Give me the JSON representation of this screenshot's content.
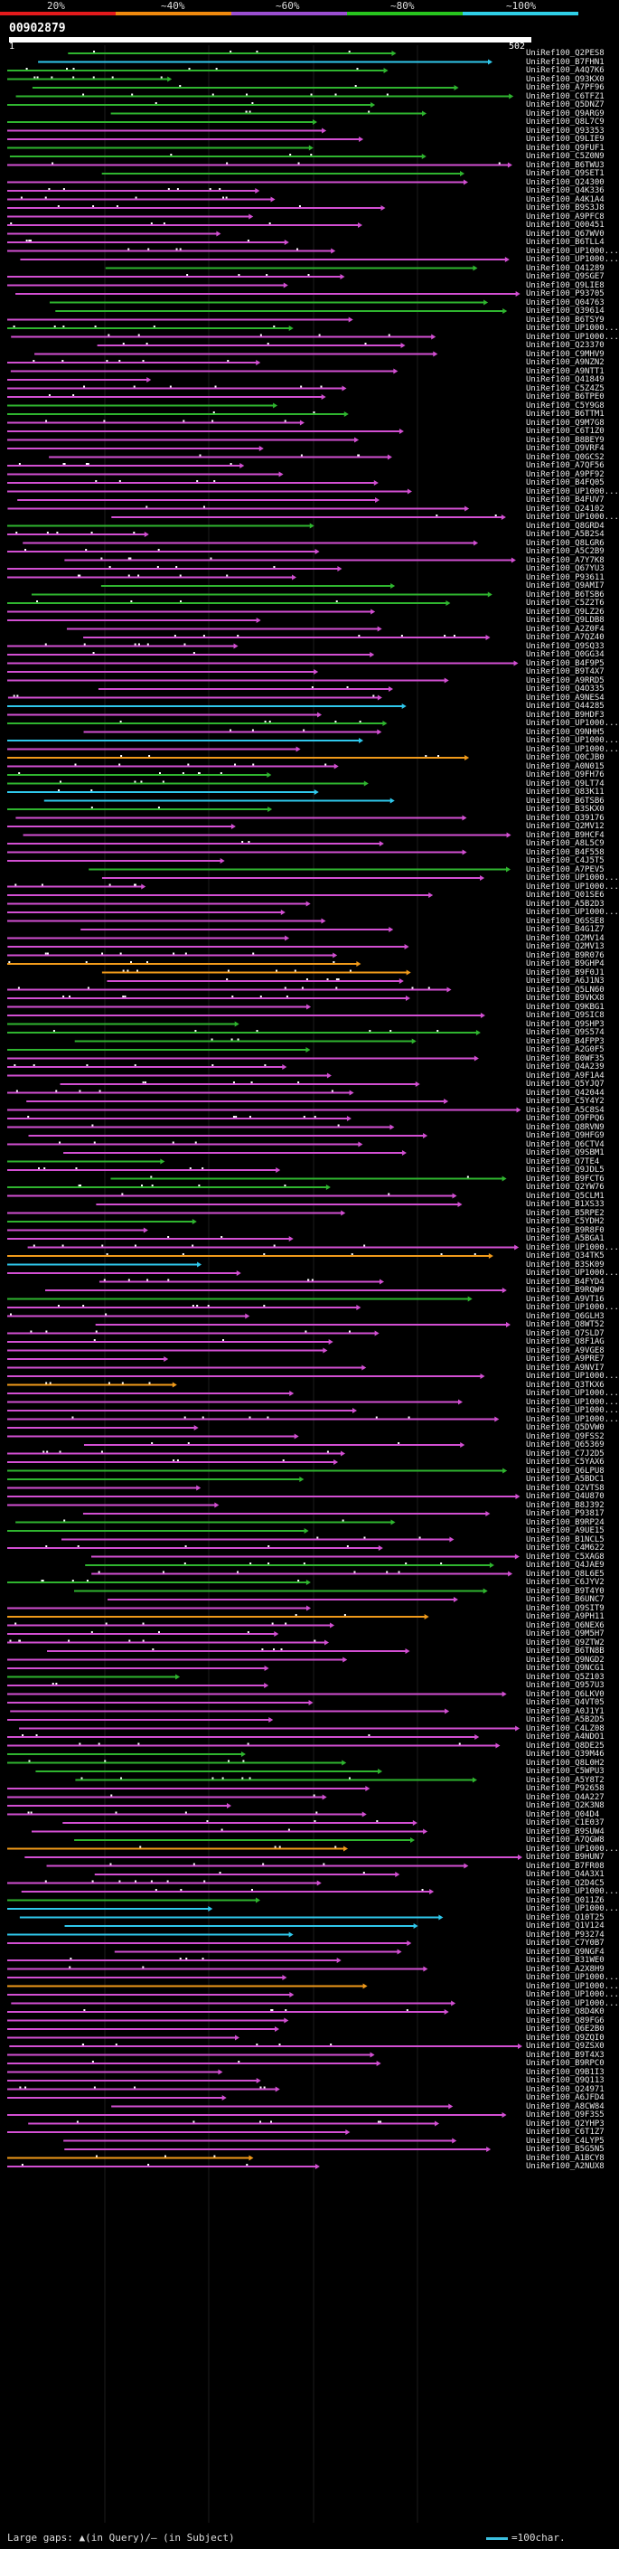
{
  "scale": {
    "labels": [
      "20%",
      "~40%",
      "~60%",
      "~80%",
      "~100%"
    ],
    "colors": [
      "#e41a1c",
      "#f08a0e",
      "#9b4fd1",
      "#28c51e",
      "#2fd0e8"
    ]
  },
  "query": {
    "id": "00902879",
    "start": "1",
    "end": "502"
  },
  "palette": {
    "magenta": "#d24fd2",
    "green": "#2fb52f",
    "orange": "#f09a1a",
    "cyan": "#2fc8ec",
    "gray": "#555555"
  },
  "hits": [
    {
      "id": "UniRef100_Q2PES8",
      "c": "g"
    },
    {
      "id": "UniRef100_B7FHN1",
      "c": "c"
    },
    {
      "id": "UniRef100_A4Q7K6",
      "c": "g"
    },
    {
      "id": "UniRef100_Q93KX0",
      "c": "g"
    },
    {
      "id": "UniRef100_A7PF96",
      "c": "g"
    },
    {
      "id": "UniRef100_C6TFZ1",
      "c": "g"
    },
    {
      "id": "UniRef100_Q5DNZ7",
      "c": "g"
    },
    {
      "id": "UniRef100_Q9ARG9",
      "c": "g"
    },
    {
      "id": "UniRef100_Q8L7C9",
      "c": "g"
    },
    {
      "id": "UniRef100_Q93353",
      "c": "m"
    },
    {
      "id": "UniRef100_Q9LIE9",
      "c": "m"
    },
    {
      "id": "UniRef100_Q9FUF1",
      "c": "g"
    },
    {
      "id": "UniRef100_C5Z0N9",
      "c": "g"
    },
    {
      "id": "UniRef100_B6TWU3",
      "c": "m"
    },
    {
      "id": "UniRef100_Q9SET1",
      "c": "g"
    },
    {
      "id": "UniRef100_Q24300",
      "c": "m"
    },
    {
      "id": "UniRef100_Q4K336",
      "c": "m"
    },
    {
      "id": "UniRef100_A4K1A4",
      "c": "m"
    },
    {
      "id": "UniRef100_B9S3J8",
      "c": "m"
    },
    {
      "id": "UniRef100_A9PFC8",
      "c": "m"
    },
    {
      "id": "UniRef100_Q00451",
      "c": "m"
    },
    {
      "id": "UniRef100_Q67WV0",
      "c": "m"
    },
    {
      "id": "UniRef100_B6TLL4",
      "c": "m"
    },
    {
      "id": "UniRef100_UP1000...",
      "c": "m"
    },
    {
      "id": "UniRef100_UP1000...",
      "c": "m"
    },
    {
      "id": "UniRef100_Q41289",
      "c": "g"
    },
    {
      "id": "UniRef100_Q9SGE7",
      "c": "m"
    },
    {
      "id": "UniRef100_Q9LIE8",
      "c": "m"
    },
    {
      "id": "UniRef100_P93705",
      "c": "m"
    },
    {
      "id": "UniRef100_Q04763",
      "c": "g"
    },
    {
      "id": "UniRef100_Q39614",
      "c": "g"
    },
    {
      "id": "UniRef100_B6TSY9",
      "c": "m"
    },
    {
      "id": "UniRef100_UP1000...",
      "c": "g"
    },
    {
      "id": "UniRef100_UP1000...",
      "c": "m"
    },
    {
      "id": "UniRef100_Q23370",
      "c": "m"
    },
    {
      "id": "UniRef100_C9MHV9",
      "c": "m"
    },
    {
      "id": "UniRef100_A9NZN2",
      "c": "m"
    },
    {
      "id": "UniRef100_A9NTT1",
      "c": "m"
    },
    {
      "id": "UniRef100_Q41849",
      "c": "m"
    },
    {
      "id": "UniRef100_C5Z4Z5",
      "c": "m"
    },
    {
      "id": "UniRef100_B6TPE0",
      "c": "m"
    },
    {
      "id": "UniRef100_C5Y9G8",
      "c": "g"
    },
    {
      "id": "UniRef100_B6TTM1",
      "c": "g"
    },
    {
      "id": "UniRef100_Q9M7G8",
      "c": "m"
    },
    {
      "id": "UniRef100_C6T1Z0",
      "c": "m"
    },
    {
      "id": "UniRef100_B8BEY9",
      "c": "m"
    },
    {
      "id": "UniRef100_Q9VRF4",
      "c": "m"
    },
    {
      "id": "UniRef100_Q0GCS2",
      "c": "m"
    },
    {
      "id": "UniRef100_A7QF56",
      "c": "m"
    },
    {
      "id": "UniRef100_A9PF92",
      "c": "m"
    },
    {
      "id": "UniRef100_B4FQ05",
      "c": "m"
    },
    {
      "id": "UniRef100_UP1000...",
      "c": "m"
    },
    {
      "id": "UniRef100_B4FUV7",
      "c": "m"
    },
    {
      "id": "UniRef100_Q24102",
      "c": "m"
    },
    {
      "id": "UniRef100_UP1000...",
      "c": "m"
    },
    {
      "id": "UniRef100_Q8GRD4",
      "c": "g"
    },
    {
      "id": "UniRef100_A5B2S4",
      "c": "m"
    },
    {
      "id": "UniRef100_Q8LGR6",
      "c": "m"
    },
    {
      "id": "UniRef100_A5C2B9",
      "c": "m"
    },
    {
      "id": "UniRef100_A7Y7K8",
      "c": "m"
    },
    {
      "id": "UniRef100_Q67YU3",
      "c": "m"
    },
    {
      "id": "UniRef100_P93611",
      "c": "m"
    },
    {
      "id": "UniRef100_Q9AMI7",
      "c": "g"
    },
    {
      "id": "UniRef100_B6TSB6",
      "c": "g"
    },
    {
      "id": "UniRef100_C5Z2T6",
      "c": "g"
    },
    {
      "id": "UniRef100_Q9LZ26",
      "c": "m"
    },
    {
      "id": "UniRef100_Q9LDB8",
      "c": "m"
    },
    {
      "id": "UniRef100_A2Z0F4",
      "c": "m"
    },
    {
      "id": "UniRef100_A7QZ40",
      "c": "m"
    },
    {
      "id": "UniRef100_Q9SQ33",
      "c": "m"
    },
    {
      "id": "UniRef100_Q0GG34",
      "c": "m"
    },
    {
      "id": "UniRef100_B4F9P5",
      "c": "m"
    },
    {
      "id": "UniRef100_B9T4X7",
      "c": "m"
    },
    {
      "id": "UniRef100_A9RRD5",
      "c": "m"
    },
    {
      "id": "UniRef100_Q4O335",
      "c": "m"
    },
    {
      "id": "UniRef100_A9NES4",
      "c": "m"
    },
    {
      "id": "UniRef100_Q44285",
      "c": "c"
    },
    {
      "id": "UniRef100_B9HDF3",
      "c": "m"
    },
    {
      "id": "UniRef100_UP1000...",
      "c": "g"
    },
    {
      "id": "UniRef100_Q9NHH5",
      "c": "m"
    },
    {
      "id": "UniRef100_UP1000...",
      "c": "c"
    },
    {
      "id": "UniRef100_UP1000...",
      "c": "m"
    },
    {
      "id": "UniRef100_Q0CJB0",
      "c": "o"
    },
    {
      "id": "UniRef100_A0N015",
      "c": "m"
    },
    {
      "id": "UniRef100_Q9FH76",
      "c": "g"
    },
    {
      "id": "UniRef100_Q9LT74",
      "c": "g"
    },
    {
      "id": "UniRef100_Q83K11",
      "c": "c"
    },
    {
      "id": "UniRef100_B6TSB6",
      "c": "c"
    },
    {
      "id": "UniRef100_B3SKX0",
      "c": "g"
    },
    {
      "id": "UniRef100_Q39176",
      "c": "m"
    },
    {
      "id": "UniRef100_Q2MV12",
      "c": "m"
    },
    {
      "id": "UniRef100_B9HCF4",
      "c": "m"
    },
    {
      "id": "UniRef100_A8L5C9",
      "c": "m"
    },
    {
      "id": "UniRef100_B4F558",
      "c": "m"
    },
    {
      "id": "UniRef100_C4J5T5",
      "c": "m"
    },
    {
      "id": "UniRef100_A7PEV5",
      "c": "g"
    },
    {
      "id": "UniRef100_UP1000...",
      "c": "m"
    },
    {
      "id": "UniRef100_UP1000...",
      "c": "m"
    },
    {
      "id": "UniRef100_Q01SE6",
      "c": "m"
    },
    {
      "id": "UniRef100_A5B2D3",
      "c": "m"
    },
    {
      "id": "UniRef100_UP1000...",
      "c": "m"
    },
    {
      "id": "UniRef100_Q6SSE8",
      "c": "m"
    },
    {
      "id": "UniRef100_B4G1Z7",
      "c": "m"
    },
    {
      "id": "UniRef100_Q2MV14",
      "c": "m"
    },
    {
      "id": "UniRef100_Q2MV13",
      "c": "m"
    },
    {
      "id": "UniRef100_B9R076",
      "c": "m"
    },
    {
      "id": "UniRef100_B9GHP4",
      "c": "o"
    },
    {
      "id": "UniRef100_B9F0J1",
      "c": "o"
    },
    {
      "id": "UniRef100_A6J1N3",
      "c": "m"
    },
    {
      "id": "UniRef100_Q5LN60",
      "c": "m"
    },
    {
      "id": "UniRef100_B9VKX8",
      "c": "m"
    },
    {
      "id": "UniRef100_Q9KBG1",
      "c": "m"
    },
    {
      "id": "UniRef100_Q9SIC8",
      "c": "m"
    },
    {
      "id": "UniRef100_Q9SHP3",
      "c": "g"
    },
    {
      "id": "UniRef100_Q9S574",
      "c": "g"
    },
    {
      "id": "UniRef100_B4FPP3",
      "c": "g"
    },
    {
      "id": "UniRef100_A2G0F5",
      "c": "g"
    },
    {
      "id": "UniRef100_B0WF35",
      "c": "m"
    },
    {
      "id": "UniRef100_Q4A239",
      "c": "m"
    },
    {
      "id": "UniRef100_A9F1A4",
      "c": "m"
    },
    {
      "id": "UniRef100_Q5YJQ7",
      "c": "m"
    },
    {
      "id": "UniRef100_Q42044",
      "c": "m"
    },
    {
      "id": "UniRef100_C5Y4Y2",
      "c": "m"
    },
    {
      "id": "UniRef100_A5C8S4",
      "c": "m"
    },
    {
      "id": "UniRef100_Q9FPQ6",
      "c": "m"
    },
    {
      "id": "UniRef100_Q8RVN9",
      "c": "m"
    },
    {
      "id": "UniRef100_Q9HFG9",
      "c": "m"
    },
    {
      "id": "UniRef100_Q6CTV4",
      "c": "m"
    },
    {
      "id": "UniRef100_Q9SBM1",
      "c": "m"
    },
    {
      "id": "UniRef100_Q7TE4",
      "c": "g"
    },
    {
      "id": "UniRef100_Q9JDL5",
      "c": "m"
    },
    {
      "id": "UniRef100_B9FCT6",
      "c": "g"
    },
    {
      "id": "UniRef100_Q2YW76",
      "c": "g"
    },
    {
      "id": "UniRef100_Q5CLM1",
      "c": "m"
    },
    {
      "id": "UniRef100_B1XS33",
      "c": "m"
    },
    {
      "id": "UniRef100_B5RPE2",
      "c": "m"
    },
    {
      "id": "UniRef100_C5YDH2",
      "c": "g"
    },
    {
      "id": "UniRef100_B9R8F0",
      "c": "m"
    },
    {
      "id": "UniRef100_A5BGA1",
      "c": "m"
    },
    {
      "id": "UniRef100_UP1000...",
      "c": "m"
    },
    {
      "id": "UniRef100_Q34TK5",
      "c": "o"
    },
    {
      "id": "UniRef100_B3SK09",
      "c": "c"
    },
    {
      "id": "UniRef100_UP1000...",
      "c": "m"
    },
    {
      "id": "UniRef100_B4FYD4",
      "c": "m"
    },
    {
      "id": "UniRef100_B9RQW9",
      "c": "m"
    },
    {
      "id": "UniRef100_A9VT16",
      "c": "g"
    },
    {
      "id": "UniRef100_UP1000...",
      "c": "m"
    },
    {
      "id": "UniRef100_Q6GLH3",
      "c": "m"
    },
    {
      "id": "UniRef100_Q8WT52",
      "c": "m"
    },
    {
      "id": "UniRef100_Q7SLD7",
      "c": "m"
    },
    {
      "id": "UniRef100_Q8F1AG",
      "c": "m"
    },
    {
      "id": "UniRef100_A9VGE8",
      "c": "m"
    },
    {
      "id": "UniRef100_A9PRE7",
      "c": "m"
    },
    {
      "id": "UniRef100_A9NVI7",
      "c": "m"
    },
    {
      "id": "UniRef100_UP1000...",
      "c": "m"
    },
    {
      "id": "UniRef100_Q3TKX6",
      "c": "o"
    },
    {
      "id": "UniRef100_UP1000...",
      "c": "m"
    },
    {
      "id": "UniRef100_UP1000...",
      "c": "m"
    },
    {
      "id": "UniRef100_UP1000...",
      "c": "m"
    },
    {
      "id": "UniRef100_UP1000...",
      "c": "m"
    },
    {
      "id": "UniRef100_Q5DVW0",
      "c": "m"
    },
    {
      "id": "UniRef100_Q9FSS2",
      "c": "m"
    },
    {
      "id": "UniRef100_Q65369",
      "c": "m"
    },
    {
      "id": "UniRef100_C7J2D5",
      "c": "m"
    },
    {
      "id": "UniRef100_C5YAX6",
      "c": "m"
    },
    {
      "id": "UniRef100_Q6LPU8",
      "c": "g"
    },
    {
      "id": "UniRef100_A5BDC1",
      "c": "g"
    },
    {
      "id": "UniRef100_Q2VTS8",
      "c": "m"
    },
    {
      "id": "UniRef100_Q4U870",
      "c": "m"
    },
    {
      "id": "UniRef100_B8J392",
      "c": "m"
    },
    {
      "id": "UniRef100_P93817",
      "c": "m"
    },
    {
      "id": "UniRef100_B9RP24",
      "c": "g"
    },
    {
      "id": "UniRef100_A9UE15",
      "c": "g"
    },
    {
      "id": "UniRef100_B1NCL5",
      "c": "m"
    },
    {
      "id": "UniRef100_C4M622",
      "c": "m"
    },
    {
      "id": "UniRef100_C5XAG8",
      "c": "m"
    },
    {
      "id": "UniRef100_Q4JAE9",
      "c": "g"
    },
    {
      "id": "UniRef100_Q8L6E5",
      "c": "m"
    },
    {
      "id": "UniRef100_C6JYV2",
      "c": "g"
    },
    {
      "id": "UniRef100_B9T4Y0",
      "c": "g"
    },
    {
      "id": "UniRef100_B6UNC7",
      "c": "m"
    },
    {
      "id": "UniRef100_Q9SIT9",
      "c": "m"
    },
    {
      "id": "UniRef100_A9PH11",
      "c": "o"
    },
    {
      "id": "UniRef100_Q6NEX6",
      "c": "m"
    },
    {
      "id": "UniRef100_Q9M5H7",
      "c": "m"
    },
    {
      "id": "UniRef100_Q9ZTW2",
      "c": "m"
    },
    {
      "id": "UniRef100_B6TN8B",
      "c": "m"
    },
    {
      "id": "UniRef100_Q9NGD2",
      "c": "m"
    },
    {
      "id": "UniRef100_Q9NCG1",
      "c": "m"
    },
    {
      "id": "UniRef100_Q5Z103",
      "c": "g"
    },
    {
      "id": "UniRef100_Q957U3",
      "c": "m"
    },
    {
      "id": "UniRef100_Q6LKV0",
      "c": "m"
    },
    {
      "id": "UniRef100_Q4VT05",
      "c": "m"
    },
    {
      "id": "UniRef100_A0J1Y1",
      "c": "m"
    },
    {
      "id": "UniRef100_A5B2D5",
      "c": "m"
    },
    {
      "id": "UniRef100_C4LZ08",
      "c": "m"
    },
    {
      "id": "UniRef100_A4NDO1",
      "c": "m"
    },
    {
      "id": "UniRef100_Q8DE25",
      "c": "m"
    },
    {
      "id": "UniRef100_Q39M46",
      "c": "g"
    },
    {
      "id": "UniRef100_Q8L0H2",
      "c": "g"
    },
    {
      "id": "UniRef100_C5WPU3",
      "c": "g"
    },
    {
      "id": "UniRef100_A5Y8T2",
      "c": "g"
    },
    {
      "id": "UniRef100_P92658",
      "c": "m"
    },
    {
      "id": "UniRef100_Q4A227",
      "c": "m"
    },
    {
      "id": "UniRef100_Q2K3N8",
      "c": "m"
    },
    {
      "id": "UniRef100_Q04D4",
      "c": "m"
    },
    {
      "id": "UniRef100_C1E037",
      "c": "m"
    },
    {
      "id": "UniRef100_B9SUW4",
      "c": "m"
    },
    {
      "id": "UniRef100_A7QGW8",
      "c": "g"
    },
    {
      "id": "UniRef100_UP1000...",
      "c": "o"
    },
    {
      "id": "UniRef100_B9HUN7",
      "c": "m"
    },
    {
      "id": "UniRef100_B7FR08",
      "c": "m"
    },
    {
      "id": "UniRef100_Q4A3X1",
      "c": "m"
    },
    {
      "id": "UniRef100_Q2D4C5",
      "c": "m"
    },
    {
      "id": "UniRef100_UP1000...",
      "c": "m"
    },
    {
      "id": "UniRef100_Q011Z6",
      "c": "g"
    },
    {
      "id": "UniRef100_UP1000...",
      "c": "c"
    },
    {
      "id": "UniRef100_Q10T25",
      "c": "c"
    },
    {
      "id": "UniRef100_Q1V124",
      "c": "c"
    },
    {
      "id": "UniRef100_P93274",
      "c": "c"
    },
    {
      "id": "UniRef100_C7Y0B7",
      "c": "m"
    },
    {
      "id": "UniRef100_Q9NGF4",
      "c": "m"
    },
    {
      "id": "UniRef100_B31WE0",
      "c": "m"
    },
    {
      "id": "UniRef100_A2X8H9",
      "c": "m"
    },
    {
      "id": "UniRef100_UP1000...",
      "c": "m"
    },
    {
      "id": "UniRef100_UP1000...",
      "c": "o"
    },
    {
      "id": "UniRef100_UP1000...",
      "c": "m"
    },
    {
      "id": "UniRef100_UP1000...",
      "c": "m"
    },
    {
      "id": "UniRef100_Q8D4K0",
      "c": "m"
    },
    {
      "id": "UniRef100_Q89FG6",
      "c": "m"
    },
    {
      "id": "UniRef100_Q6E2B0",
      "c": "m"
    },
    {
      "id": "UniRef100_Q9ZQI0",
      "c": "m"
    },
    {
      "id": "UniRef100_Q9ZSX0",
      "c": "m"
    },
    {
      "id": "UniRef100_B9T4X3",
      "c": "m"
    },
    {
      "id": "UniRef100_B9RPC0",
      "c": "m"
    },
    {
      "id": "UniRef100_Q9B1I3",
      "c": "m"
    },
    {
      "id": "UniRef100_Q9Q113",
      "c": "m"
    },
    {
      "id": "UniRef100_Q24971",
      "c": "m"
    },
    {
      "id": "UniRef100_A6JFD4",
      "c": "m"
    },
    {
      "id": "UniRef100_A8CW84",
      "c": "m"
    },
    {
      "id": "UniRef100_Q9F3S5",
      "c": "m"
    },
    {
      "id": "UniRef100_Q2YHP3",
      "c": "m"
    },
    {
      "id": "UniRef100_C6T1Z7",
      "c": "m"
    },
    {
      "id": "UniRef100_C4LYP5",
      "c": "m"
    },
    {
      "id": "UniRef100_B5G5N5",
      "c": "m"
    },
    {
      "id": "UniRef100_A1BCY8",
      "c": "o"
    },
    {
      "id": "UniRef100_A2NUX8",
      "c": "m"
    }
  ],
  "legend": {
    "text": "Large gaps: ▲(in Query)/— (in Subject)",
    "scale_text": "=100char."
  }
}
